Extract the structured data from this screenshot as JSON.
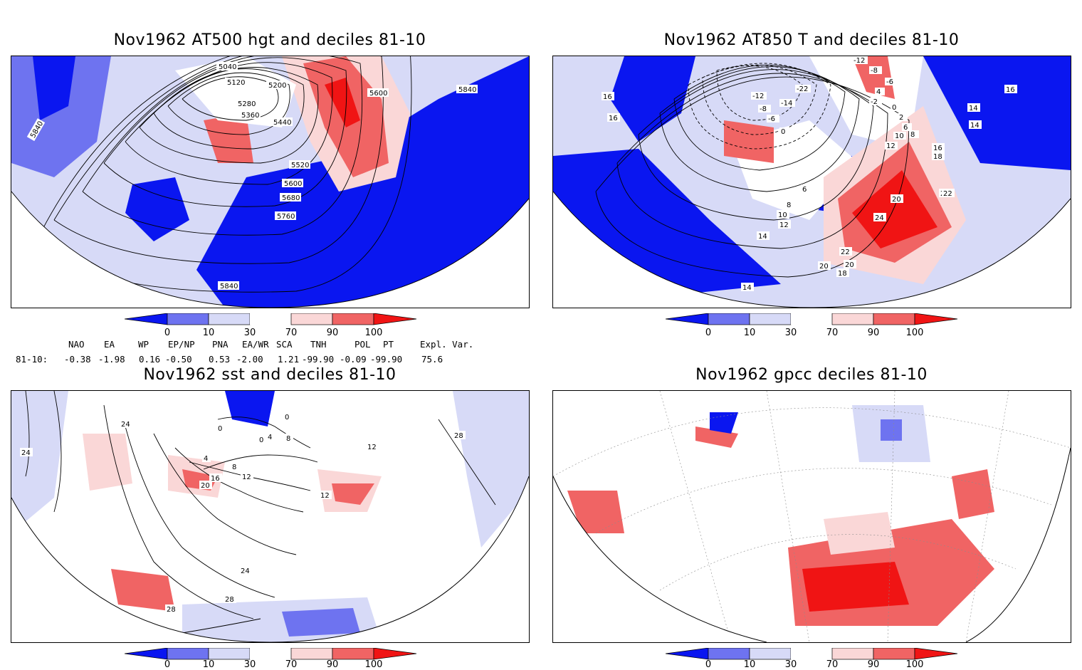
{
  "colors": {
    "deep_blue": "#0a16f0",
    "mid_blue": "#6e73f0",
    "light_blue": "#d7daf7",
    "light_red": "#fad7d7",
    "mid_red": "#f06464",
    "deep_red": "#f01414",
    "coast": "#23b9b9",
    "grid": "#8c8c8c"
  },
  "colorbar": {
    "labels": [
      "0",
      "10",
      "30",
      "70",
      "90",
      "100"
    ]
  },
  "panels": [
    {
      "title": "Nov1962 AT500 hgt and deciles 81-10",
      "contour_labels": [
        "5040",
        "5120",
        "5200",
        "5280",
        "5360",
        "5440",
        "5520",
        "5600",
        "5680",
        "5760",
        "5840",
        "5840",
        "5840",
        "5600"
      ]
    },
    {
      "title": "Nov1962 AT850 T and deciles 81-10",
      "contour_labels": [
        "-12",
        "-8",
        "-6",
        "4",
        "-2",
        "0",
        "2",
        "6",
        "8",
        "10",
        "12",
        "14",
        "14",
        "16",
        "16",
        "18",
        "20",
        "22",
        "24",
        "-22",
        "-14",
        "-12",
        "-8",
        "-6",
        "0",
        "6",
        "8",
        "10",
        "14",
        "16",
        "14",
        "12",
        "16",
        "20",
        "22",
        "18",
        "22",
        "20"
      ]
    },
    {
      "title": "Nov1962 sst and deciles 81-10",
      "contour_labels": [
        "0",
        "0",
        "4",
        "8",
        "12",
        "16",
        "20",
        "24",
        "28",
        "28",
        "24",
        "28",
        "24",
        "0",
        "4",
        "8",
        "12",
        "12"
      ]
    },
    {
      "title": "Nov1962 gpcc deciles 81-10",
      "contour_labels": []
    }
  ],
  "teleconnections": {
    "header": [
      "NAO",
      "EA",
      "WP",
      "EP/NP",
      "PNA",
      "EA/WR",
      "SCA",
      "TNH",
      "POL",
      "PT",
      "Expl. Var."
    ],
    "row_label": "81-10:",
    "values": [
      "-0.38",
      "-1.98",
      "0.16",
      "-0.50",
      "0.53",
      "-2.00",
      "1.21",
      "-99.90",
      "-0.09",
      "-99.90",
      "75.6"
    ]
  }
}
